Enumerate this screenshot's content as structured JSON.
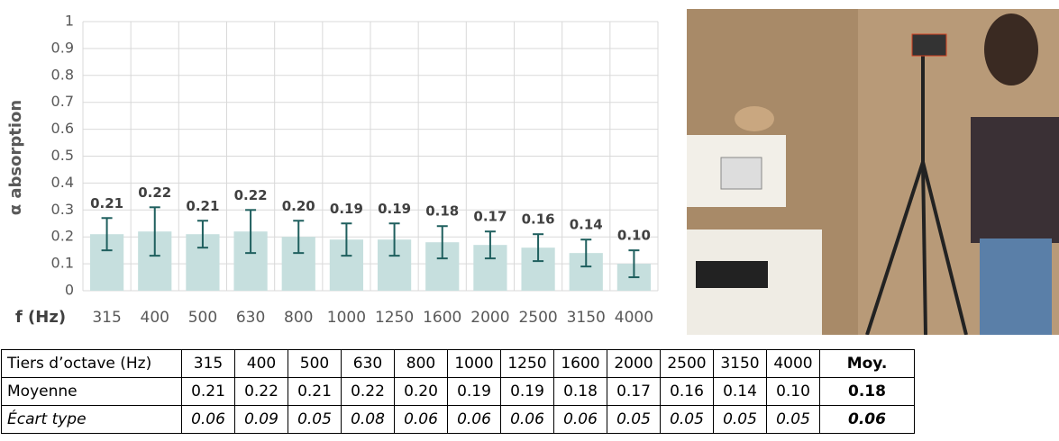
{
  "chart_data": {
    "type": "bar",
    "y_label": "α absorption",
    "x_label": "f (Hz)",
    "categories": [
      "315",
      "400",
      "500",
      "630",
      "800",
      "1000",
      "1250",
      "1600",
      "2000",
      "2500",
      "3150",
      "4000"
    ],
    "values": [
      0.21,
      0.22,
      0.21,
      0.22,
      0.2,
      0.19,
      0.19,
      0.18,
      0.17,
      0.16,
      0.14,
      0.1
    ],
    "value_labels": [
      "0.21",
      "0.22",
      "0.21",
      "0.22",
      "0.20",
      "0.19",
      "0.19",
      "0.18",
      "0.17",
      "0.16",
      "0.14",
      "0.10"
    ],
    "errors": [
      0.06,
      0.09,
      0.05,
      0.08,
      0.06,
      0.06,
      0.06,
      0.06,
      0.05,
      0.05,
      0.05,
      0.05
    ],
    "color": "#c6dfde",
    "error_color": "#1f5f5e",
    "ylim": [
      0,
      1
    ],
    "yticks": [
      0,
      0.1,
      0.2,
      0.3,
      0.4,
      0.5,
      0.6,
      0.7,
      0.8,
      0.9,
      1
    ],
    "grid": true
  },
  "table": {
    "rows": [
      [
        "Tiers d’octave (Hz)",
        "315",
        "400",
        "500",
        "630",
        "800",
        "1000",
        "1250",
        "1600",
        "2000",
        "2500",
        "3150",
        "4000",
        "Moy."
      ],
      [
        "Moyenne",
        "0.21",
        "0.22",
        "0.21",
        "0.22",
        "0.20",
        "0.19",
        "0.19",
        "0.18",
        "0.17",
        "0.16",
        "0.14",
        "0.10",
        "0.18"
      ],
      [
        "Écart type",
        "0.06",
        "0.09",
        "0.05",
        "0.08",
        "0.06",
        "0.06",
        "0.06",
        "0.06",
        "0.05",
        "0.05",
        "0.05",
        "0.05",
        "0.06"
      ]
    ]
  }
}
